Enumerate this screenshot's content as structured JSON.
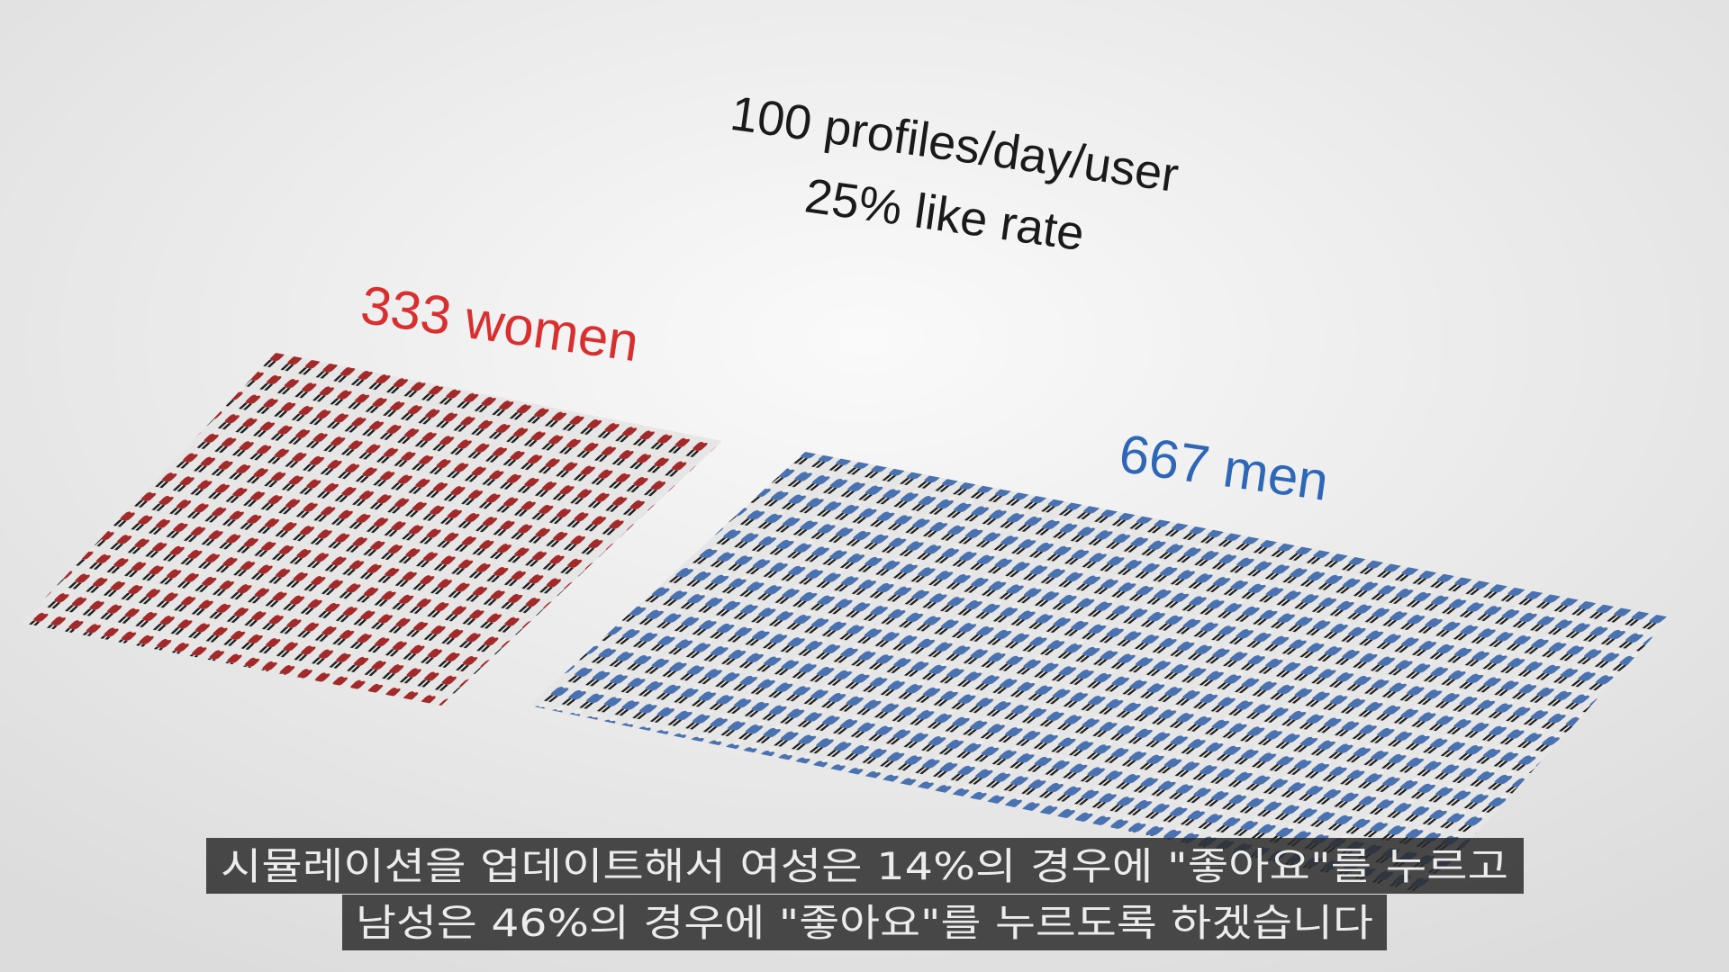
{
  "overlay": {
    "stats": [
      "100 profiles/day/user",
      "25% like rate"
    ],
    "women_label": "333 women",
    "men_label": "667 men"
  },
  "subtitle": {
    "lines": [
      "시뮬레이션을 업데이트해서 여성은 14%의 경우에 \"좋아요\"를 누르고",
      "남성은 46%의 경우에 \"좋아요\"를 누르도록 하겠습니다"
    ]
  }
}
